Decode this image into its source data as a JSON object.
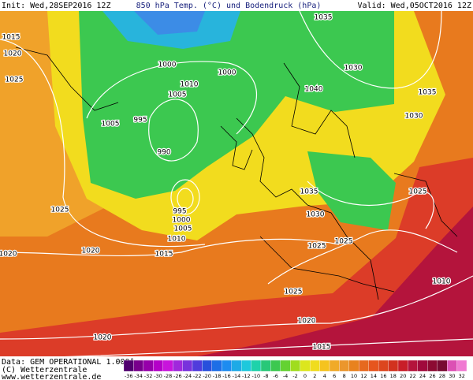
{
  "header": {
    "init": "Init: Wed,28SEP2016 12Z",
    "title": "850 hPa Temp. (°C) und Bodendruck (hPa)",
    "valid": "Valid: Wed,05OCT2016 12Z"
  },
  "footer": [
    "Data: GEM OPERATIONAL 1.000°",
    "(C) Wetterzentrale",
    "www.wetterzentrale.de"
  ],
  "isobar_labels": [
    "1015",
    "1020",
    "1025",
    "1005",
    "995",
    "1000",
    "1010",
    "1005",
    "1000",
    "990",
    "1035",
    "1030",
    "1040",
    "1035",
    "1030",
    "1025",
    "1020",
    "1015",
    "1020",
    "995",
    "1000",
    "1005",
    "1010",
    "1035",
    "1030",
    "1025",
    "1025",
    "1025",
    "1025",
    "1020",
    "1020",
    "1015",
    "1010"
  ],
  "legend": {
    "ticks": [
      -36,
      -34,
      -32,
      -30,
      -28,
      -26,
      -24,
      -22,
      -20,
      -18,
      -16,
      -14,
      -12,
      -10,
      -8,
      -6,
      -4,
      -2,
      0,
      2,
      4,
      6,
      8,
      10,
      12,
      14,
      16,
      18,
      20,
      22,
      24,
      26,
      28,
      30,
      32
    ],
    "colors": [
      "#50006e",
      "#78008c",
      "#9600aa",
      "#b400c8",
      "#c814dc",
      "#a028dc",
      "#7832dc",
      "#503cdc",
      "#2850dc",
      "#1e6ee6",
      "#1e8cf0",
      "#1eaae6",
      "#1ec8dc",
      "#1ed2aa",
      "#28c878",
      "#3cc850",
      "#64d232",
      "#a0dc1e",
      "#dce61e",
      "#f0dc1e",
      "#f5c31e",
      "#f0aa28",
      "#eb962d",
      "#e8821e",
      "#e6691e",
      "#e6551e",
      "#dc461e",
      "#d2321e",
      "#c81e28",
      "#b4143c",
      "#a00a3c",
      "#8c0a32",
      "#780a32",
      "#dc50b4",
      "#f07ad2"
    ]
  }
}
